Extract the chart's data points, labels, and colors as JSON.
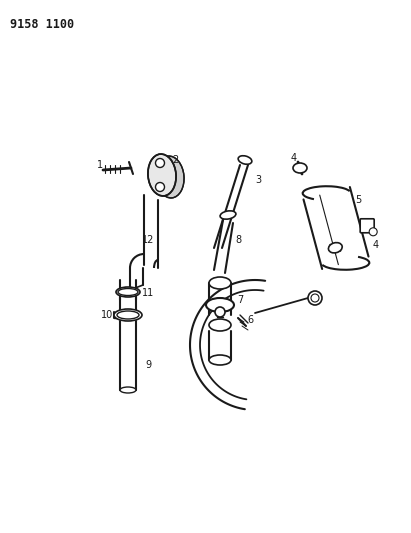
{
  "title": "9158 1100",
  "background_color": "#ffffff",
  "line_color": "#1a1a1a",
  "label_color": "#1a1a1a",
  "figsize": [
    4.11,
    5.33
  ],
  "dpi": 100
}
